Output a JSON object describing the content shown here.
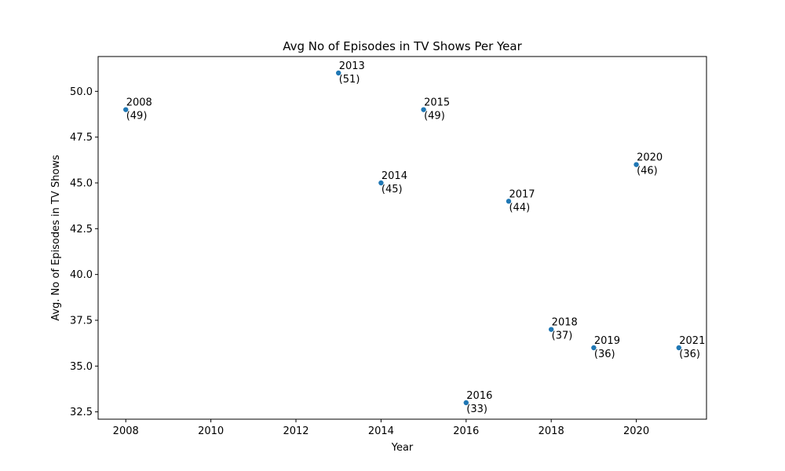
{
  "chart_data": {
    "type": "scatter",
    "title": "Avg No of Episodes in TV Shows Per Year",
    "xlabel": "Year",
    "ylabel": "Avg. No of Episodes in TV Shows",
    "xlim": [
      2007.35,
      2021.65
    ],
    "ylim": [
      32.1,
      51.9
    ],
    "x_ticks": [
      2008,
      2010,
      2012,
      2014,
      2016,
      2018,
      2020
    ],
    "y_ticks": [
      32.5,
      35.0,
      37.5,
      40.0,
      42.5,
      45.0,
      47.5,
      50.0
    ],
    "x_tick_labels": [
      "2008",
      "2010",
      "2012",
      "2014",
      "2016",
      "2018",
      "2020"
    ],
    "y_tick_labels": [
      "32.5",
      "35.0",
      "37.5",
      "40.0",
      "42.5",
      "45.0",
      "47.5",
      "50.0"
    ],
    "grid": false,
    "marker_color": "#1f77b4",
    "points": [
      {
        "x": 2008,
        "y": 49,
        "year_label": "2008",
        "value_label": "(49)"
      },
      {
        "x": 2013,
        "y": 51,
        "year_label": "2013",
        "value_label": "(51)"
      },
      {
        "x": 2014,
        "y": 45,
        "year_label": "2014",
        "value_label": "(45)"
      },
      {
        "x": 2015,
        "y": 49,
        "year_label": "2015",
        "value_label": "(49)"
      },
      {
        "x": 2016,
        "y": 33,
        "year_label": "2016",
        "value_label": "(33)"
      },
      {
        "x": 2017,
        "y": 44,
        "year_label": "2017",
        "value_label": "(44)"
      },
      {
        "x": 2018,
        "y": 37,
        "year_label": "2018",
        "value_label": "(37)"
      },
      {
        "x": 2019,
        "y": 36,
        "year_label": "2019",
        "value_label": "(36)"
      },
      {
        "x": 2020,
        "y": 46,
        "year_label": "2020",
        "value_label": "(46)"
      },
      {
        "x": 2021,
        "y": 36,
        "year_label": "2021",
        "value_label": "(36)"
      }
    ]
  }
}
